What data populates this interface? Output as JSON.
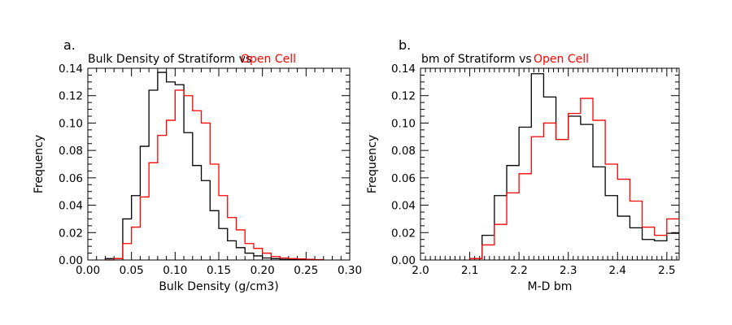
{
  "chart_data": [
    {
      "type": "bar",
      "style": "step-histogram",
      "panel_label": "a.",
      "title_parts": [
        {
          "text": "Bulk Density of Stratiform vs",
          "color": "#000000"
        },
        {
          "text": "Open Cell",
          "color": "#ff0000"
        }
      ],
      "xlabel": "Bulk Density (g/cm3)",
      "ylabel": "Frequency",
      "xlim": [
        0.0,
        0.3
      ],
      "ylim": [
        0.0,
        0.14
      ],
      "xticks": [
        0.0,
        0.05,
        0.1,
        0.15,
        0.2,
        0.25,
        0.3
      ],
      "xtick_labels": [
        "0.00",
        "0.05",
        "0.10",
        "0.15",
        "0.20",
        "0.25",
        "0.30"
      ],
      "xminor_step": 0.01,
      "yticks": [
        0.0,
        0.02,
        0.04,
        0.06,
        0.08,
        0.1,
        0.12,
        0.14
      ],
      "ytick_labels": [
        "0.00",
        "0.02",
        "0.04",
        "0.06",
        "0.08",
        "0.10",
        "0.12",
        "0.14"
      ],
      "yminor_step": 0.005,
      "bin_width": 0.01,
      "bin_start": 0.02,
      "grid": false,
      "series": [
        {
          "name": "Stratiform",
          "color": "#000000",
          "values": [
            0.001,
            0.001,
            0.03,
            0.047,
            0.083,
            0.124,
            0.137,
            0.13,
            0.128,
            0.093,
            0.069,
            0.058,
            0.036,
            0.023,
            0.014,
            0.009,
            0.005,
            0.003,
            0.0015,
            0.001,
            0.0005,
            0.0003,
            0.0002
          ]
        },
        {
          "name": "Open Cell",
          "color": "#ff0000",
          "values": [
            0.0,
            0.001,
            0.012,
            0.024,
            0.046,
            0.071,
            0.091,
            0.102,
            0.124,
            0.12,
            0.109,
            0.1,
            0.07,
            0.047,
            0.031,
            0.022,
            0.012,
            0.0085,
            0.005,
            0.0025,
            0.0015,
            0.001,
            0.0008,
            0.0005,
            0.0003
          ]
        }
      ]
    },
    {
      "type": "bar",
      "style": "step-histogram",
      "panel_label": "b.",
      "title_parts": [
        {
          "text": "bm of Stratiform vs",
          "color": "#000000"
        },
        {
          "text": "Open Cell",
          "color": "#ff0000"
        }
      ],
      "xlabel": "M-D bm",
      "ylabel": "Frequency",
      "xlim": [
        2.0,
        2.525
      ],
      "ylim": [
        0.0,
        0.14
      ],
      "xticks": [
        2.0,
        2.1,
        2.2,
        2.3,
        2.4,
        2.5
      ],
      "xtick_labels": [
        "2.0",
        "2.1",
        "2.2",
        "2.3",
        "2.4",
        "2.5"
      ],
      "xminor_step": 0.01,
      "yticks": [
        0.0,
        0.02,
        0.04,
        0.06,
        0.08,
        0.1,
        0.12,
        0.14
      ],
      "ytick_labels": [
        "0.00",
        "0.02",
        "0.04",
        "0.06",
        "0.08",
        "0.10",
        "0.12",
        "0.14"
      ],
      "yminor_step": 0.005,
      "bin_width": 0.025,
      "bin_start": 2.1,
      "grid": false,
      "series": [
        {
          "name": "Stratiform",
          "color": "#000000",
          "values": [
            0.001,
            0.018,
            0.047,
            0.069,
            0.097,
            0.136,
            0.119,
            0.088,
            0.105,
            0.099,
            0.068,
            0.047,
            0.032,
            0.0235,
            0.015,
            0.014,
            0.0195
          ]
        },
        {
          "name": "Open Cell",
          "color": "#ff0000",
          "values": [
            0.001,
            0.011,
            0.026,
            0.049,
            0.063,
            0.09,
            0.1,
            0.088,
            0.107,
            0.118,
            0.102,
            0.07,
            0.059,
            0.043,
            0.024,
            0.018,
            0.03
          ]
        }
      ]
    }
  ]
}
